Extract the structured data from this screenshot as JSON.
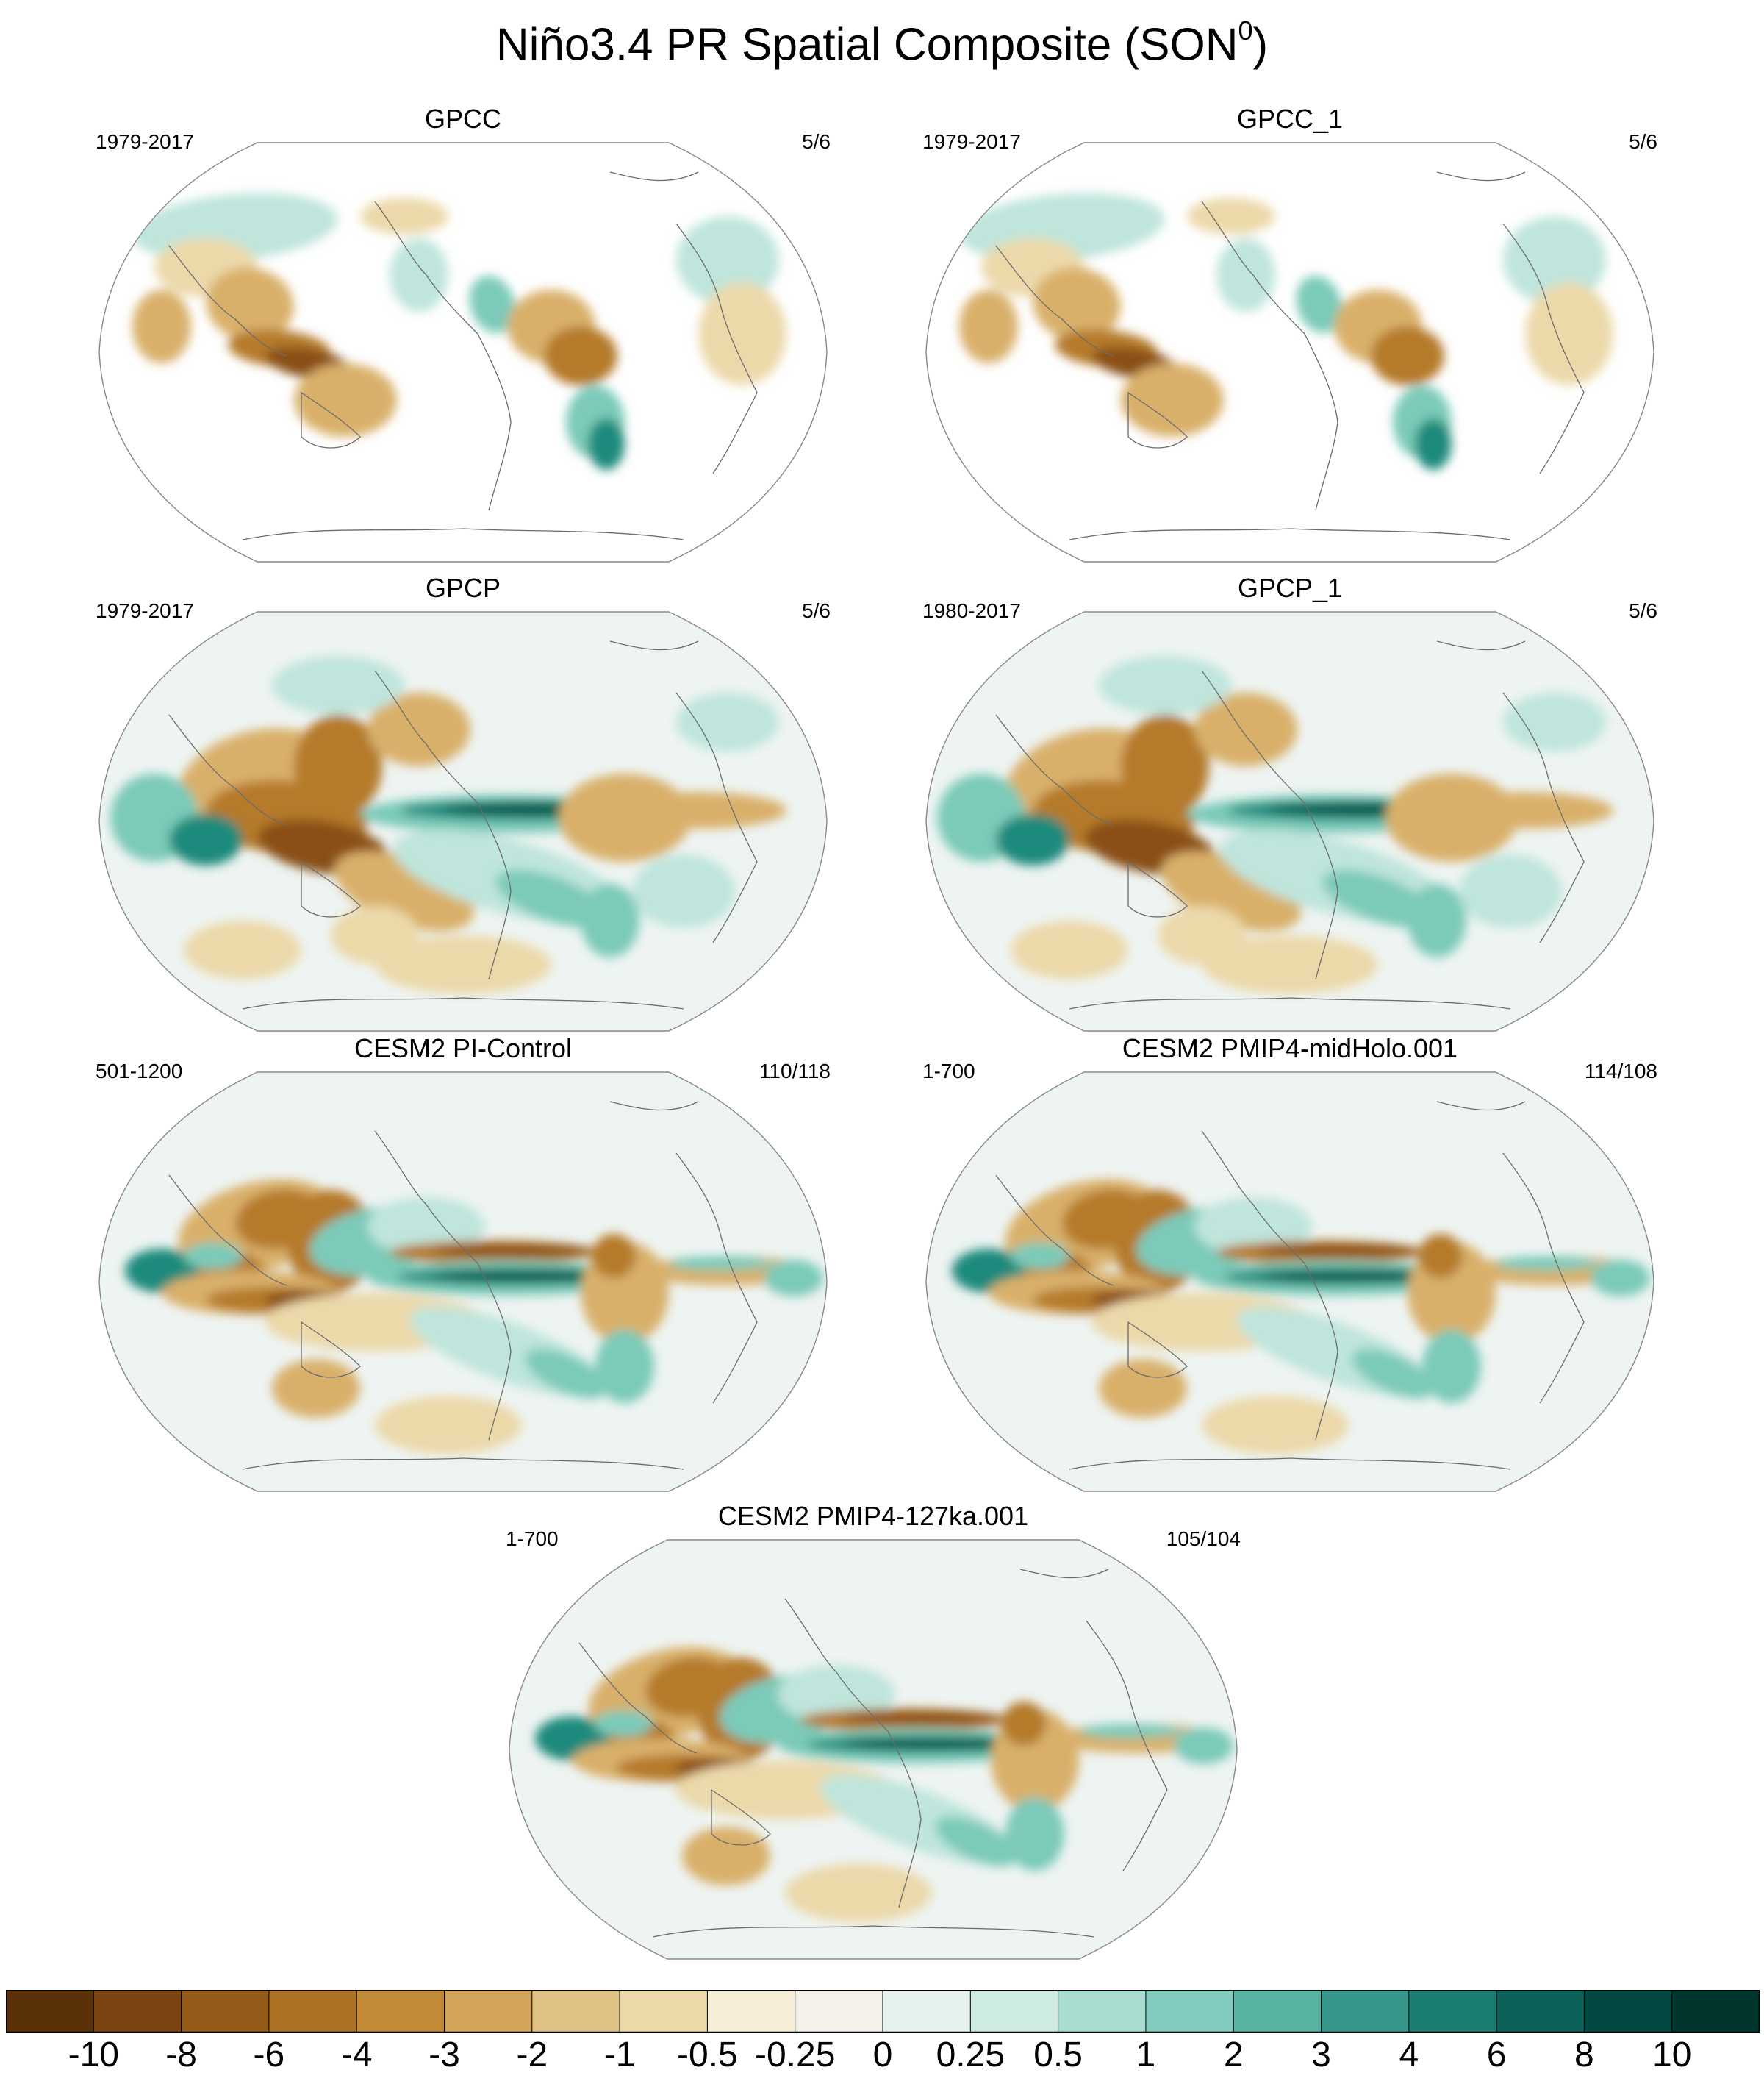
{
  "title": {
    "main": "Niño3.4 PR Spatial Composite (SON",
    "superscript": "0",
    "closing": ")"
  },
  "panels": [
    {
      "title": "GPCC",
      "left_label": "1979-2017",
      "right_label": "5/6",
      "variant": "obs-land"
    },
    {
      "title": "GPCC_1",
      "left_label": "1979-2017",
      "right_label": "5/6",
      "variant": "obs-land"
    },
    {
      "title": "GPCP",
      "left_label": "1979-2017",
      "right_label": "5/6",
      "variant": "obs-global"
    },
    {
      "title": "GPCP_1",
      "left_label": "1980-2017",
      "right_label": "5/6",
      "variant": "obs-global"
    },
    {
      "title": "CESM2 PI-Control",
      "left_label": "501-1200",
      "right_label": "110/118",
      "variant": "model"
    },
    {
      "title": "CESM2 PMIP4-midHolo.001",
      "left_label": "1-700",
      "right_label": "114/108",
      "variant": "model"
    },
    {
      "title": "CESM2 PMIP4-127ka.001",
      "left_label": "1-700",
      "right_label": "105/104",
      "variant": "model"
    }
  ],
  "colorbar": {
    "labels": [
      "-10",
      "-8",
      "-6",
      "-4",
      "-3",
      "-2",
      "-1",
      "-0.5",
      "-0.25",
      "0",
      "0.25",
      "0.5",
      "1",
      "2",
      "3",
      "4",
      "6",
      "8",
      "10"
    ],
    "colors": [
      "#5a3108",
      "#7a430f",
      "#955b18",
      "#ad7126",
      "#c28a37",
      "#d2a55a",
      "#e1c285",
      "#ecd9aa",
      "#f6edd6",
      "#f4f1ea",
      "#e6f2ef",
      "#cdeae3",
      "#a9ddd2",
      "#80cbbd",
      "#58b3a3",
      "#36978a",
      "#1b7c70",
      "#0b6057",
      "#024a41",
      "#00352d"
    ]
  }
}
